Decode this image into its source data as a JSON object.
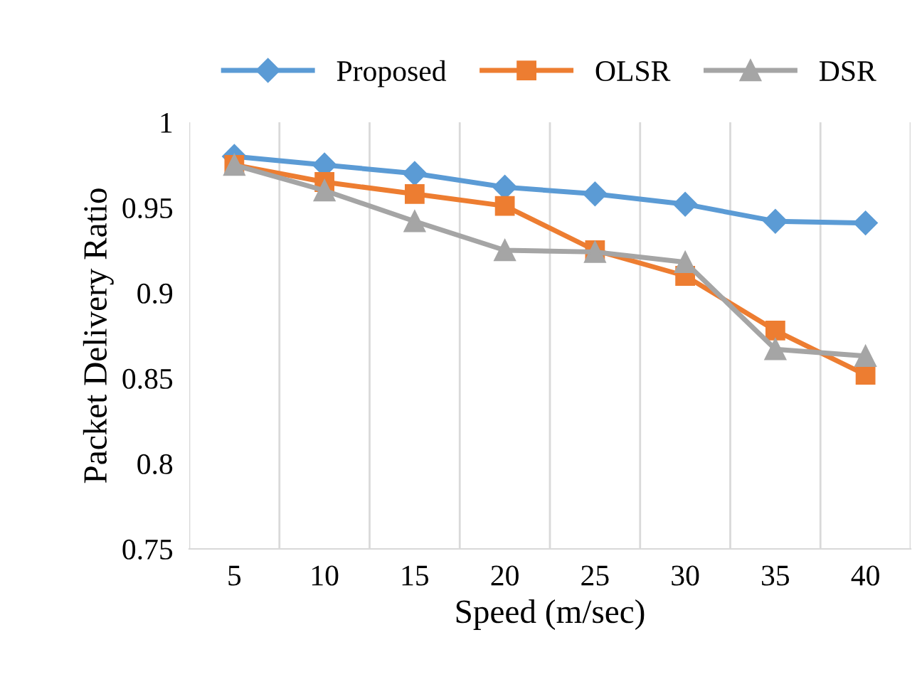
{
  "chart_data": {
    "type": "line",
    "xlabel": "Speed (m/sec)",
    "ylabel": "Packet Delivery Ratio",
    "categories": [
      "5",
      "10",
      "15",
      "20",
      "25",
      "30",
      "35",
      "40"
    ],
    "series": [
      {
        "name": "Proposed",
        "color": "#5b9bd5",
        "marker": "diamond",
        "values": [
          0.98,
          0.975,
          0.97,
          0.962,
          0.958,
          0.952,
          0.942,
          0.941
        ]
      },
      {
        "name": "OLSR",
        "color": "#ed7d31",
        "marker": "square",
        "values": [
          0.975,
          0.965,
          0.958,
          0.951,
          0.925,
          0.91,
          0.878,
          0.852
        ]
      },
      {
        "name": "DSR",
        "color": "#a5a5a5",
        "marker": "triangle",
        "values": [
          0.975,
          0.96,
          0.942,
          0.925,
          0.924,
          0.918,
          0.867,
          0.863
        ]
      }
    ],
    "ylim": [
      0.75,
      1
    ],
    "yticks": [
      0.75,
      0.8,
      0.85,
      0.9,
      0.95,
      1
    ],
    "grid": "x",
    "legend": "top",
    "line_style": "solid"
  }
}
